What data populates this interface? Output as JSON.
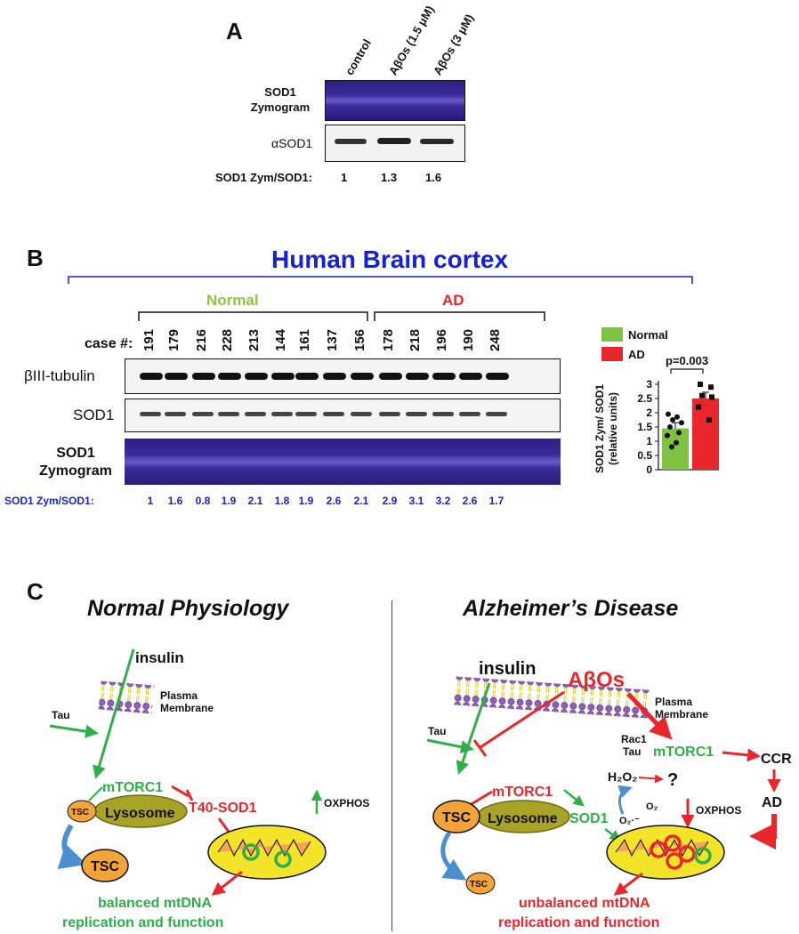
{
  "panelA": {
    "letter": "A",
    "lanes": [
      "control",
      "AβOs (1.5 μM)",
      "AβOs (3 μM)"
    ],
    "row_zymogram": "SOD1\nZymogram",
    "row_zymogram_l1": "SOD1",
    "row_zymogram_l2": "Zymogram",
    "row_sod1": "αSOD1",
    "ratio_label": "SOD1 Zym/SOD1:",
    "ratios": [
      "1",
      "1.3",
      "1.6"
    ]
  },
  "panelB": {
    "letter": "B",
    "title": "Human Brain cortex",
    "group_normal": "Normal",
    "group_ad": "AD",
    "case_label": "case #:",
    "cases": [
      "191",
      "179",
      "216",
      "228",
      "213",
      "144",
      "161",
      "137",
      "156",
      "178",
      "218",
      "196",
      "190",
      "248"
    ],
    "row_tubulin": "βIII-tubulin",
    "row_sod1": "SOD1",
    "row_zym_l1": "SOD1",
    "row_zym_l2": "Zymogram",
    "ratio_label": "SOD1 Zym/SOD1:",
    "ratios": [
      "1",
      "1.6",
      "0.8",
      "1.9",
      "2.1",
      "1.8",
      "1.9",
      "2.6",
      "2.1",
      "2.9",
      "3.1",
      "3.2",
      "2.6",
      "1.7"
    ]
  },
  "chart_data": {
    "type": "bar",
    "categories": [
      "Normal",
      "AD"
    ],
    "values": [
      1.45,
      2.5
    ],
    "errors": [
      0.2,
      0.22
    ],
    "colors": [
      "#7dc242",
      "#e8262b"
    ],
    "points_normal": [
      1.95,
      1.85,
      1.75,
      1.65,
      1.5,
      1.3,
      1.2,
      0.95,
      0.8
    ],
    "points_ad": [
      3.0,
      2.9,
      2.6,
      2.55,
      2.2,
      1.75
    ],
    "ylabel_l1": "SOD1 Zym/ SOD1",
    "ylabel_l2": "(relative units)",
    "ylim": [
      0,
      3
    ],
    "yticks": [
      "0",
      "0.5",
      "1",
      "1.5",
      "2",
      "2.5",
      "3"
    ],
    "legend": [
      "Normal",
      "AD"
    ],
    "pvalue": "p=0.003"
  },
  "panelC": {
    "letter": "C",
    "left_title": "Normal Physiology",
    "right_title": "Alzheimer’s Disease",
    "insulin": "insulin",
    "plasma": "Plasma",
    "membrane": "Membrane",
    "tau": "Tau",
    "mtorc1": "mTORC1",
    "tsc": "TSC",
    "lysosome": "Lysosome",
    "t40sod1": "T40-SOD1",
    "oxphos": "OXPHOS",
    "balanced_l1": "balanced mtDNA",
    "balanced_l2": "replication and function",
    "abos": "AβOs",
    "rac1": "Rac1",
    "ccr": "CCR",
    "ad": "AD",
    "h2o2": "H₂O₂",
    "question": "?",
    "o2": "O₂",
    "o2radical": "O₂·⁻",
    "sod1": "SOD1",
    "unbalanced_l1": "unbalanced mtDNA",
    "unbalanced_l2": "replication and function"
  }
}
